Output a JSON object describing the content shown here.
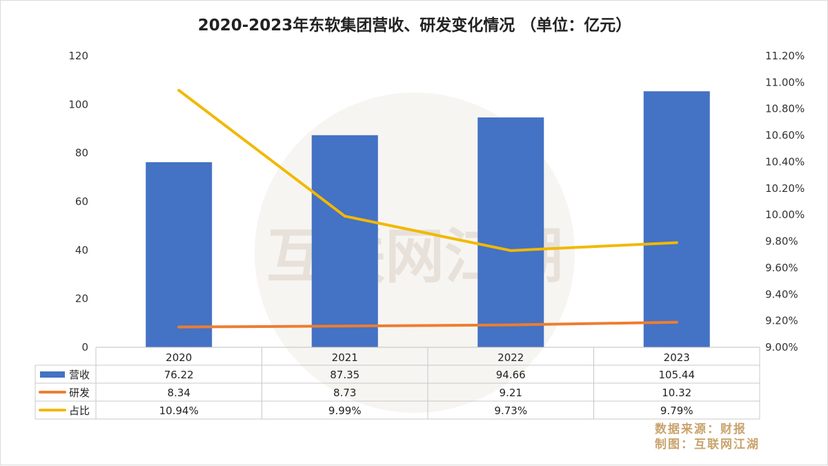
{
  "chart_data": {
    "type": "bar+line",
    "title": "2020-2023年东软集团营收、研发变化情况   （单位：亿元）",
    "categories": [
      "2020",
      "2021",
      "2022",
      "2023"
    ],
    "series": [
      {
        "name": "营收",
        "type": "bar",
        "axis": "left",
        "color": "#4472c4",
        "values": [
          76.22,
          87.35,
          94.66,
          105.44
        ],
        "labels": [
          "76.22",
          "87.35",
          "94.66",
          "105.44"
        ]
      },
      {
        "name": "研发",
        "type": "line",
        "axis": "left",
        "color": "#ed7d31",
        "values": [
          8.34,
          8.73,
          9.21,
          10.32
        ],
        "labels": [
          "8.34",
          "8.73",
          "9.21",
          "10.32"
        ]
      },
      {
        "name": "占比",
        "type": "line",
        "axis": "right",
        "color": "#f2b800",
        "values": [
          10.94,
          9.99,
          9.73,
          9.79
        ],
        "labels": [
          "10.94%",
          "9.99%",
          "9.73%",
          "9.79%"
        ]
      }
    ],
    "y_left": {
      "min": 0,
      "max": 120,
      "ticks": [
        "0",
        "20",
        "40",
        "60",
        "80",
        "100",
        "120"
      ]
    },
    "y_right": {
      "min": 9.0,
      "max": 11.2,
      "ticks": [
        "9.00%",
        "9.20%",
        "9.40%",
        "9.60%",
        "9.80%",
        "10.00%",
        "10.20%",
        "10.40%",
        "10.60%",
        "10.80%",
        "11.00%",
        "11.20%"
      ]
    },
    "grid": false,
    "legend": "data-table",
    "source_lines": [
      "数据来源：财报",
      "制图：互联网江湖"
    ],
    "watermark": "互联网江湖"
  }
}
